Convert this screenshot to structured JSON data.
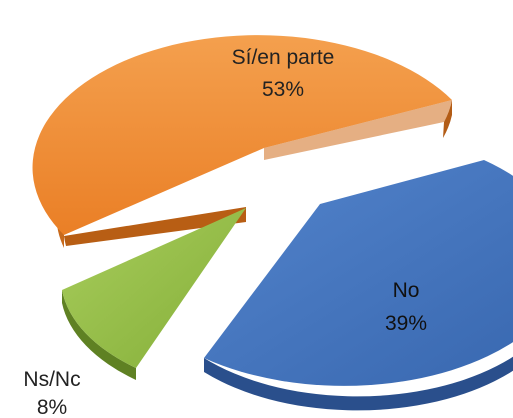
{
  "chart_data": {
    "type": "pie",
    "style": "3d-exploded",
    "title": "",
    "slices": [
      {
        "label": "Sí/en parte",
        "value": 53,
        "display": "53%",
        "color": "#ED8128"
      },
      {
        "label": "No",
        "value": 39,
        "display": "39%",
        "color": "#3C6CB4"
      },
      {
        "label": "Ns/Nc",
        "value": 8,
        "display": "8%",
        "color": "#8DB83D"
      }
    ],
    "legend": "none"
  }
}
